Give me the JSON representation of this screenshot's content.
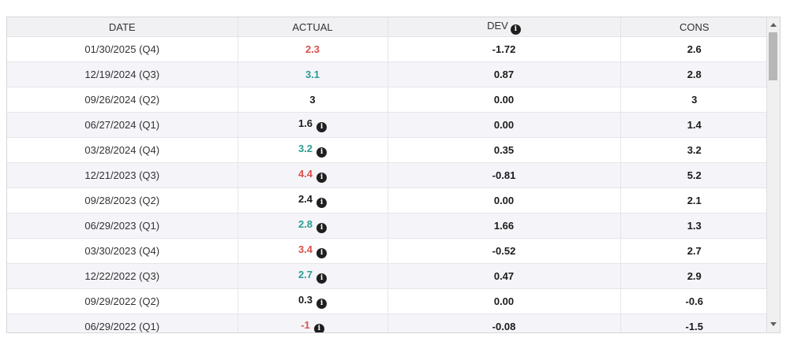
{
  "colors": {
    "negative": "#dc4f4a",
    "positive": "#2a9d90",
    "neutral": "#1b1b1b"
  },
  "icons": {
    "info_glyph": "i"
  },
  "table": {
    "columns": [
      {
        "key": "date",
        "label": "DATE"
      },
      {
        "key": "actual",
        "label": "ACTUAL"
      },
      {
        "key": "dev",
        "label": "DEV"
      },
      {
        "key": "cons",
        "label": "CONS"
      }
    ],
    "rows": [
      {
        "date": "01/30/2025 (Q4)",
        "actual": "2.3",
        "actual_color": "negative",
        "has_info": false,
        "dev": "-1.72",
        "cons": "2.6"
      },
      {
        "date": "12/19/2024 (Q3)",
        "actual": "3.1",
        "actual_color": "positive",
        "has_info": false,
        "dev": "0.87",
        "cons": "2.8"
      },
      {
        "date": "09/26/2024 (Q2)",
        "actual": "3",
        "actual_color": "neutral",
        "has_info": false,
        "dev": "0.00",
        "cons": "3"
      },
      {
        "date": "06/27/2024 (Q1)",
        "actual": "1.6",
        "actual_color": "neutral",
        "has_info": true,
        "dev": "0.00",
        "cons": "1.4"
      },
      {
        "date": "03/28/2024 (Q4)",
        "actual": "3.2",
        "actual_color": "positive",
        "has_info": true,
        "dev": "0.35",
        "cons": "3.2"
      },
      {
        "date": "12/21/2023 (Q3)",
        "actual": "4.4",
        "actual_color": "negative",
        "has_info": true,
        "dev": "-0.81",
        "cons": "5.2"
      },
      {
        "date": "09/28/2023 (Q2)",
        "actual": "2.4",
        "actual_color": "neutral",
        "has_info": true,
        "dev": "0.00",
        "cons": "2.1"
      },
      {
        "date": "06/29/2023 (Q1)",
        "actual": "2.8",
        "actual_color": "positive",
        "has_info": true,
        "dev": "1.66",
        "cons": "1.3"
      },
      {
        "date": "03/30/2023 (Q4)",
        "actual": "3.4",
        "actual_color": "negative",
        "has_info": true,
        "dev": "-0.52",
        "cons": "2.7"
      },
      {
        "date": "12/22/2022 (Q3)",
        "actual": "2.7",
        "actual_color": "positive",
        "has_info": true,
        "dev": "0.47",
        "cons": "2.9"
      },
      {
        "date": "09/29/2022 (Q2)",
        "actual": "0.3",
        "actual_color": "neutral",
        "has_info": true,
        "dev": "0.00",
        "cons": "-0.6"
      },
      {
        "date": "06/29/2022 (Q1)",
        "actual": "-1",
        "actual_color": "negative",
        "has_info": true,
        "dev": "-0.08",
        "cons": "-1.5"
      }
    ]
  }
}
